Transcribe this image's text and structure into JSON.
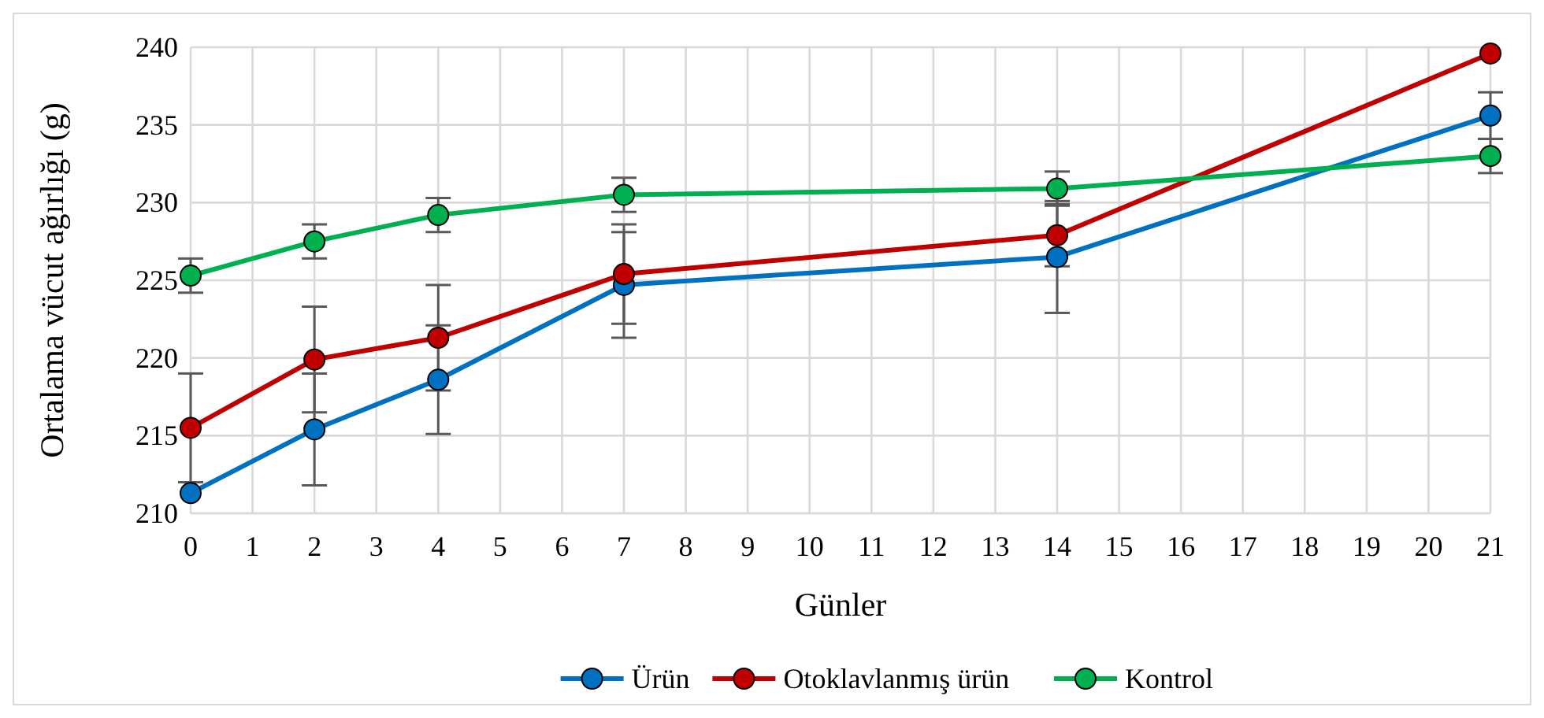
{
  "chart_data": {
    "type": "line",
    "xlabel": "Günler",
    "ylabel": "Ortalama vücut ağırlığı (g)",
    "xlim": [
      0,
      21
    ],
    "xticks": [
      0,
      1,
      2,
      3,
      4,
      5,
      6,
      7,
      8,
      9,
      10,
      11,
      12,
      13,
      14,
      15,
      16,
      17,
      18,
      19,
      20,
      21
    ],
    "ylim": [
      210,
      240
    ],
    "yticks": [
      210,
      215,
      220,
      225,
      230,
      235,
      240
    ],
    "grid": true,
    "legend": "bottom",
    "marker": "circle",
    "x": [
      0,
      2,
      4,
      7,
      14,
      21
    ],
    "series": [
      {
        "name": "Ürün",
        "color": "#0070c0",
        "values": [
          211.3,
          215.4,
          218.6,
          224.7,
          226.5,
          235.6
        ],
        "errors": [
          null,
          3.6,
          3.5,
          3.4,
          3.6,
          1.5
        ]
      },
      {
        "name": "Otoklavlanmış ürün",
        "color": "#c00000",
        "values": [
          215.5,
          219.9,
          221.3,
          225.4,
          227.9,
          239.6
        ],
        "errors": [
          3.5,
          3.4,
          3.4,
          3.2,
          2,
          null
        ]
      },
      {
        "name": "Kontrol",
        "color": "#00b050",
        "values": [
          225.3,
          227.5,
          229.2,
          230.5,
          230.9,
          233
        ],
        "errors": [
          1.1,
          1.1,
          1.1,
          1.1,
          1.1,
          1.1
        ]
      }
    ]
  }
}
